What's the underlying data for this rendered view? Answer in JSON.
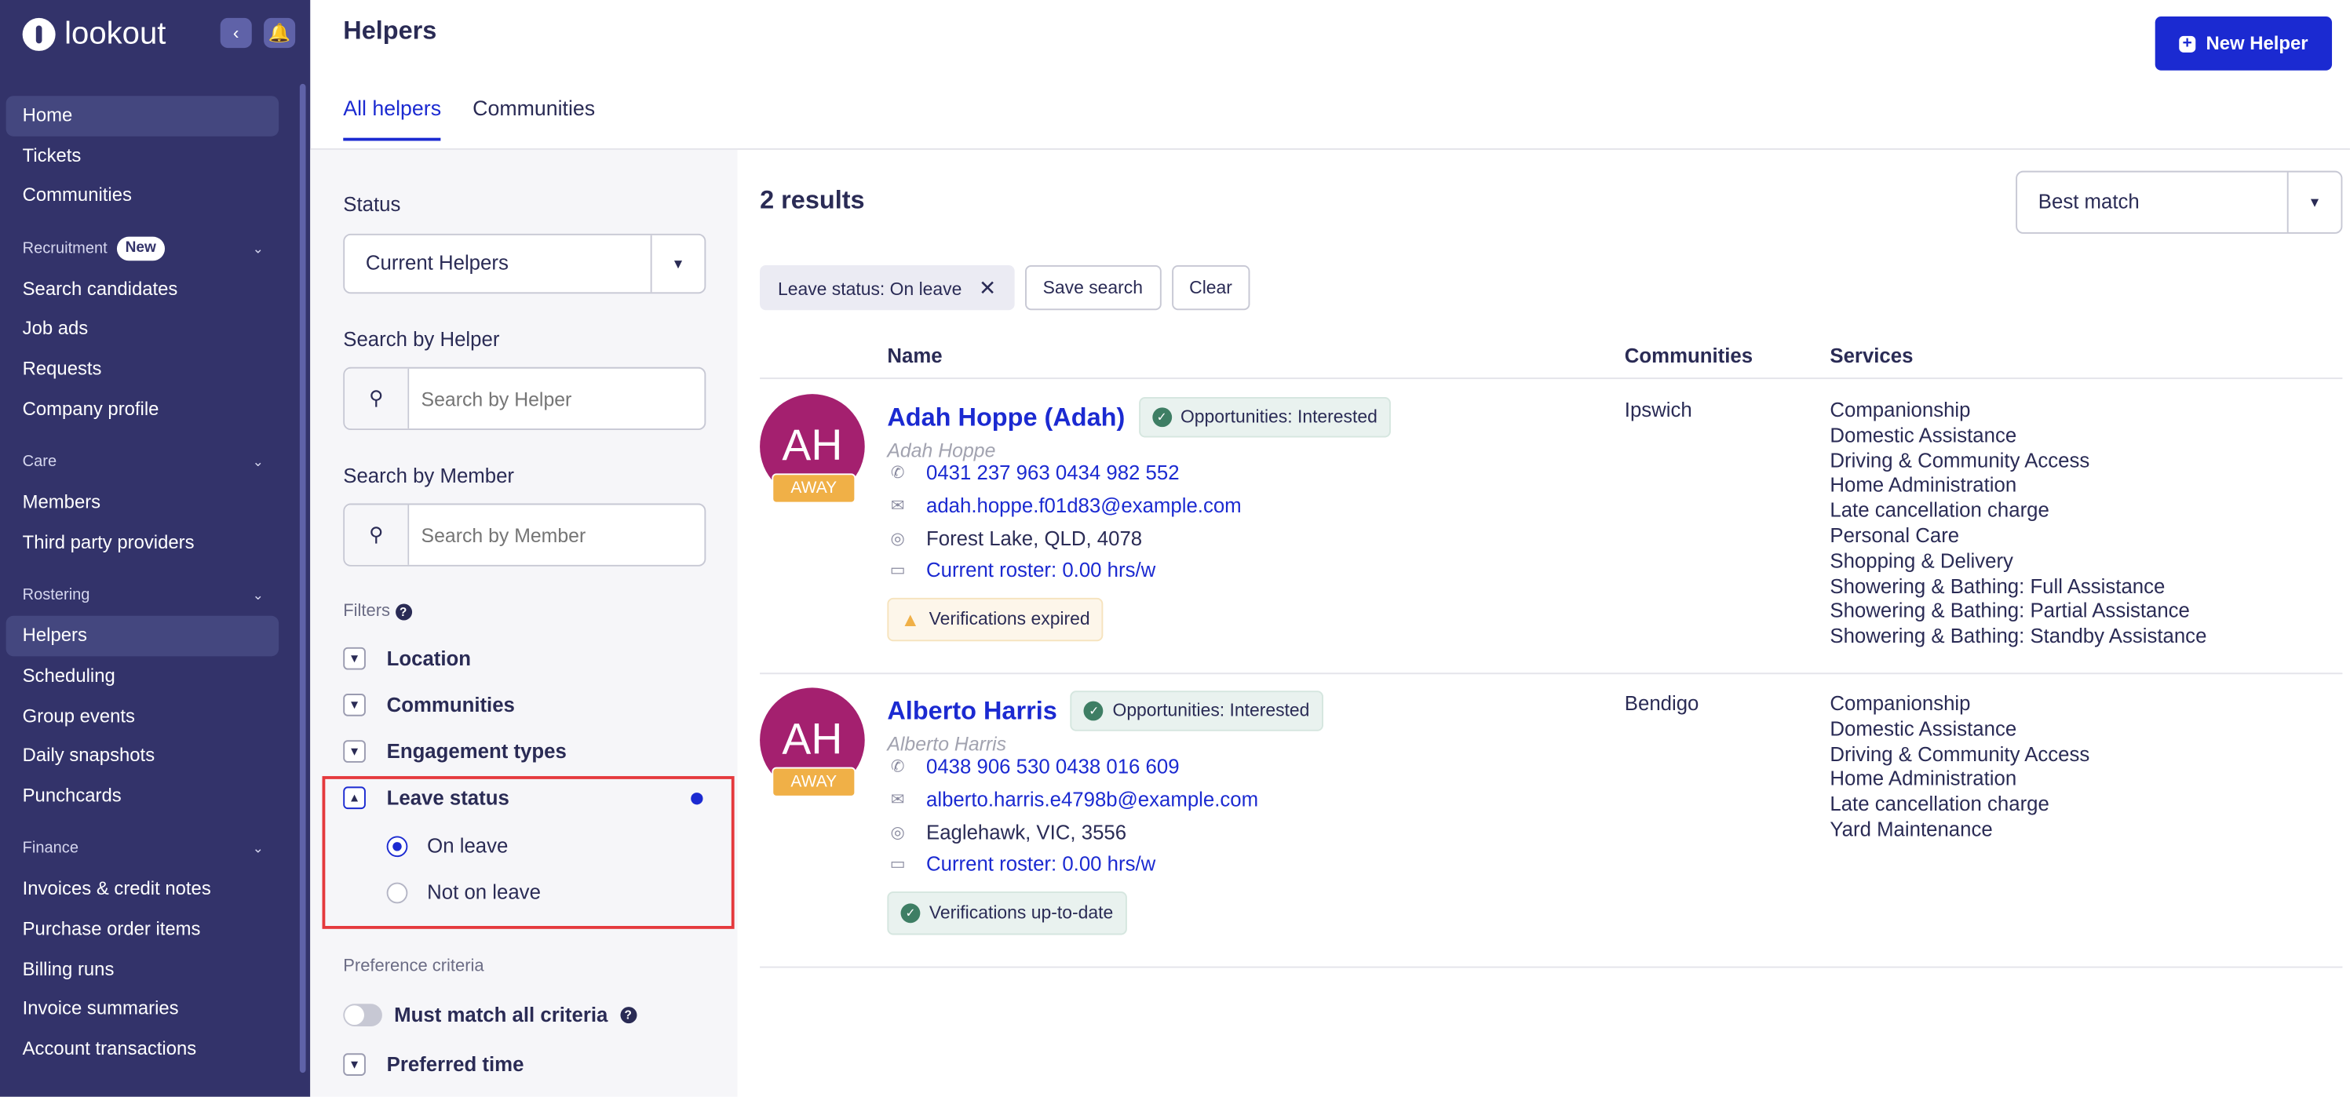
{
  "brand": {
    "name": "lookout"
  },
  "sidebar": {
    "top": [
      {
        "label": "Home",
        "active": true
      },
      {
        "label": "Tickets"
      },
      {
        "label": "Communities"
      }
    ],
    "sections": [
      {
        "title": "Recruitment",
        "badge": "New",
        "items": [
          "Search candidates",
          "Job ads",
          "Requests",
          "Company profile"
        ]
      },
      {
        "title": "Care",
        "items": [
          "Members",
          "Third party providers"
        ]
      },
      {
        "title": "Rostering",
        "items": [
          "Helpers",
          "Scheduling",
          "Group events",
          "Daily snapshots",
          "Punchcards"
        ],
        "active": "Helpers"
      },
      {
        "title": "Finance",
        "items": [
          "Invoices & credit notes",
          "Purchase order items",
          "Billing runs",
          "Invoice summaries",
          "Account transactions"
        ]
      }
    ]
  },
  "header": {
    "title": "Helpers",
    "tabs": [
      {
        "label": "All helpers",
        "active": true
      },
      {
        "label": "Communities"
      }
    ],
    "new_button": "New Helper"
  },
  "filters": {
    "status_label": "Status",
    "status_value": "Current Helpers",
    "helper_label": "Search by Helper",
    "helper_placeholder": "Search by Helper",
    "member_label": "Search by Member",
    "member_placeholder": "Search by Member",
    "filters_label": "Filters",
    "sections": [
      "Location",
      "Communities",
      "Engagement types",
      "Leave status"
    ],
    "leave_options": [
      {
        "label": "On leave",
        "selected": true
      },
      {
        "label": "Not on leave",
        "selected": false
      }
    ],
    "preference_label": "Preference criteria",
    "must_match_label": "Must match all criteria",
    "must_match_on": false,
    "preferred_time": "Preferred time"
  },
  "results": {
    "count": "2 results",
    "sort": "Best match",
    "active_filter": "Leave status: On leave",
    "save_search": "Save search",
    "clear": "Clear",
    "columns": [
      "Name",
      "Communities",
      "Services"
    ],
    "rows": [
      {
        "initials": "AH",
        "status": "AWAY",
        "name": "Adah Hoppe (Adah)",
        "opportunity": "Opportunities: Interested",
        "legal_name": "Adah Hoppe",
        "phone": "0431 237 963 0434 982 552",
        "email": "adah.hoppe.f01d83@example.com",
        "address": "Forest Lake, QLD, 4078",
        "roster": "Current roster: 0.00 hrs/w",
        "verification": "Verifications expired",
        "verification_ok": false,
        "community": "Ipswich",
        "services": [
          "Companionship",
          "Domestic Assistance",
          "Driving & Community Access",
          "Home Administration",
          "Late cancellation charge",
          "Personal Care",
          "Shopping & Delivery",
          "Showering & Bathing: Full Assistance",
          "Showering & Bathing: Partial Assistance",
          "Showering & Bathing: Standby Assistance"
        ]
      },
      {
        "initials": "AH",
        "status": "AWAY",
        "name": "Alberto Harris",
        "opportunity": "Opportunities: Interested",
        "legal_name": "Alberto Harris",
        "phone": "0438 906 530 0438 016 609",
        "email": "alberto.harris.e4798b@example.com",
        "address": "Eaglehawk, VIC, 3556",
        "roster": "Current roster: 0.00 hrs/w",
        "verification": "Verifications up-to-date",
        "verification_ok": true,
        "community": "Bendigo",
        "services": [
          "Companionship",
          "Domestic Assistance",
          "Driving & Community Access",
          "Home Administration",
          "Late cancellation charge",
          "Yard Maintenance"
        ]
      }
    ]
  },
  "colors": {
    "sidebar": "#33336a",
    "accent": "#1b2ad1",
    "avatar": "#a4206f",
    "away": "#f0b047",
    "highlight": "#e5393d"
  }
}
